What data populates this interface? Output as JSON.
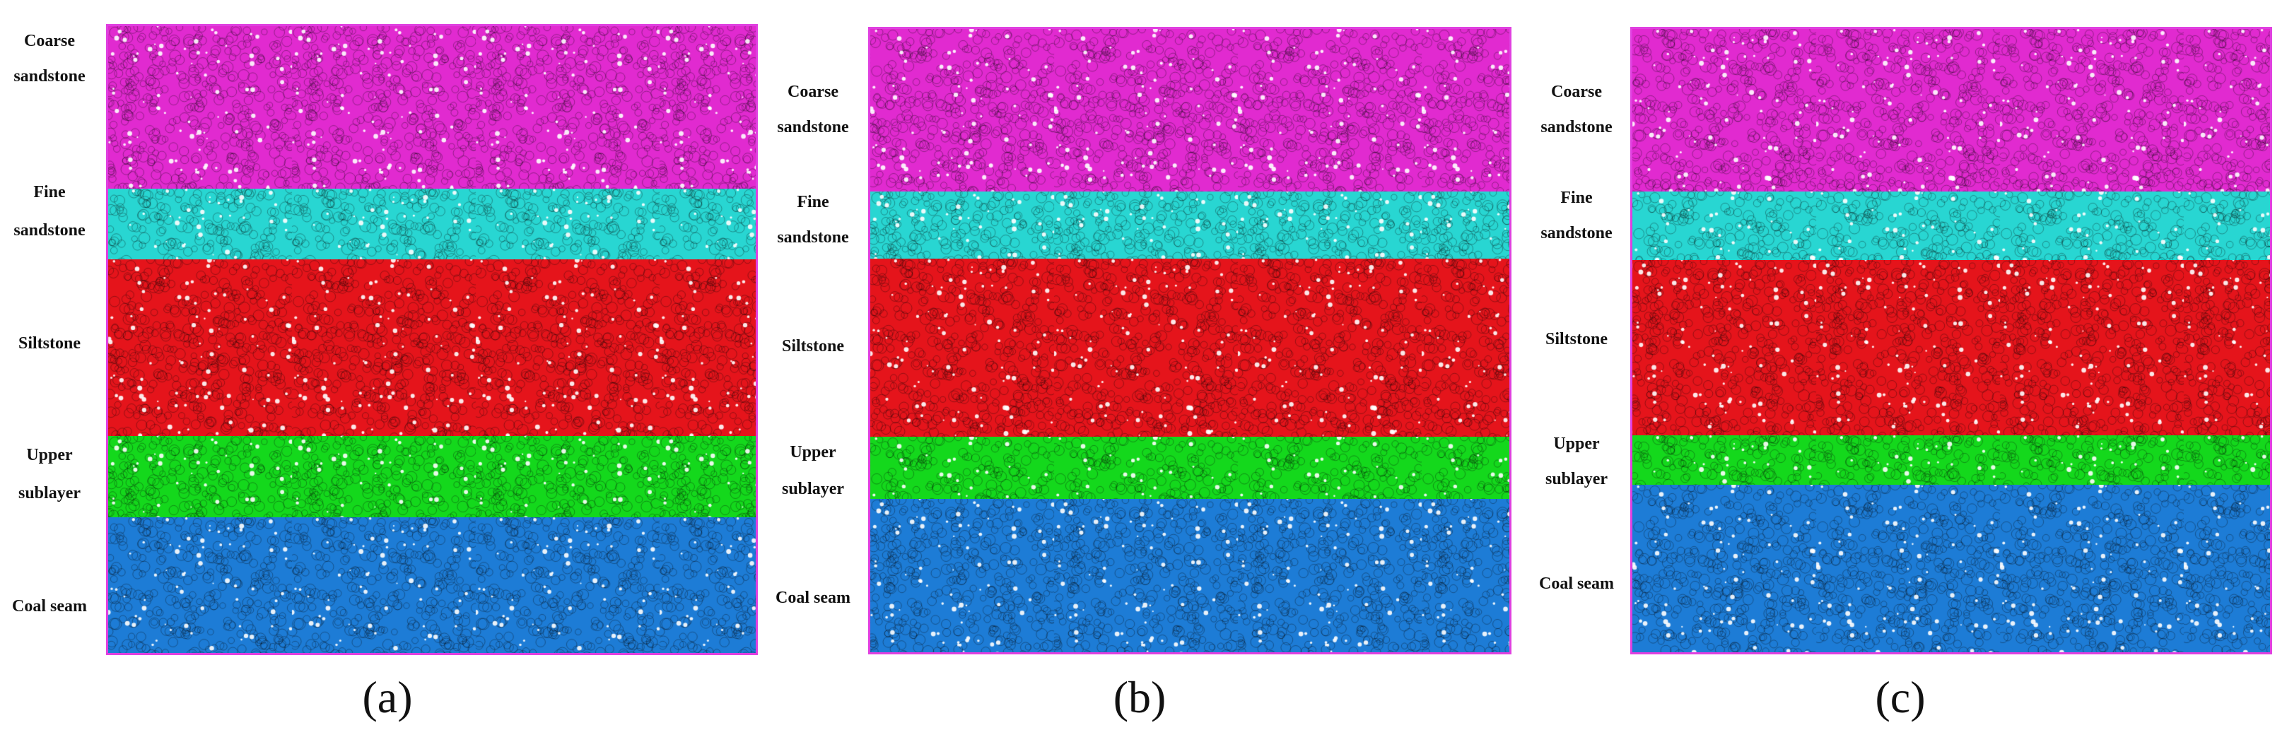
{
  "panels": [
    {
      "id": "a",
      "caption": "(a)"
    },
    {
      "id": "b",
      "caption": "(b)"
    },
    {
      "id": "c",
      "caption": "(c)"
    }
  ],
  "layers": [
    {
      "key": "coarse",
      "label_line1": "Coarse",
      "label_line2": "sandstone",
      "color": "#e12ad0"
    },
    {
      "key": "fine",
      "label_line1": "Fine",
      "label_line2": "sandstone",
      "color": "#28d6d2"
    },
    {
      "key": "silt",
      "label_line1": "Siltstone",
      "label_line2": "",
      "color": "#e5141b"
    },
    {
      "key": "upper",
      "label_line1": "Upper",
      "label_line2": "sublayer",
      "color": "#14d81c"
    },
    {
      "key": "coal",
      "label_line1": "Coal seam",
      "label_line2": "",
      "color": "#1d7cd6"
    }
  ],
  "colors": {
    "border": "#e040e0"
  }
}
